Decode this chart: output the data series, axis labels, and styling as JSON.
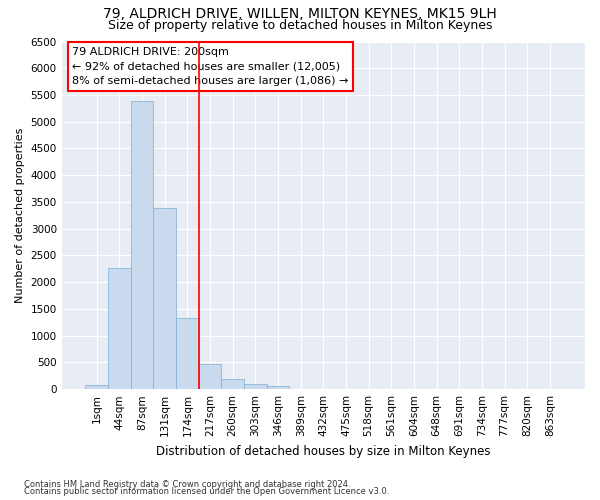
{
  "title1": "79, ALDRICH DRIVE, WILLEN, MILTON KEYNES, MK15 9LH",
  "title2": "Size of property relative to detached houses in Milton Keynes",
  "xlabel": "Distribution of detached houses by size in Milton Keynes",
  "ylabel": "Number of detached properties",
  "footnote1": "Contains HM Land Registry data © Crown copyright and database right 2024.",
  "footnote2": "Contains public sector information licensed under the Open Government Licence v3.0.",
  "annotation_title": "79 ALDRICH DRIVE: 200sqm",
  "annotation_line1": "← 92% of detached houses are smaller (12,005)",
  "annotation_line2": "8% of semi-detached houses are larger (1,086) →",
  "bar_labels": [
    "1sqm",
    "44sqm",
    "87sqm",
    "131sqm",
    "174sqm",
    "217sqm",
    "260sqm",
    "303sqm",
    "346sqm",
    "389sqm",
    "432sqm",
    "475sqm",
    "518sqm",
    "561sqm",
    "604sqm",
    "648sqm",
    "691sqm",
    "734sqm",
    "777sqm",
    "820sqm",
    "863sqm"
  ],
  "bar_values": [
    75,
    2270,
    5390,
    3380,
    1330,
    480,
    190,
    90,
    55,
    0,
    0,
    0,
    0,
    0,
    0,
    0,
    0,
    0,
    0,
    0,
    0
  ],
  "bar_color": "#c9d9ee",
  "bar_edgecolor": "#7bafd4",
  "vline_x": 4.5,
  "vline_color": "red",
  "ylim": [
    0,
    6500
  ],
  "yticks": [
    0,
    500,
    1000,
    1500,
    2000,
    2500,
    3000,
    3500,
    4000,
    4500,
    5000,
    5500,
    6000,
    6500
  ],
  "bg_color": "#e8edf5",
  "fig_bg": "#ffffff",
  "grid_color": "#ffffff",
  "annotation_box_color": "#ffffff",
  "annotation_border_color": "red",
  "title1_fontsize": 10,
  "title2_fontsize": 9,
  "xlabel_fontsize": 8.5,
  "ylabel_fontsize": 8,
  "tick_fontsize": 7.5,
  "annotation_fontsize": 8,
  "footnote_fontsize": 6
}
